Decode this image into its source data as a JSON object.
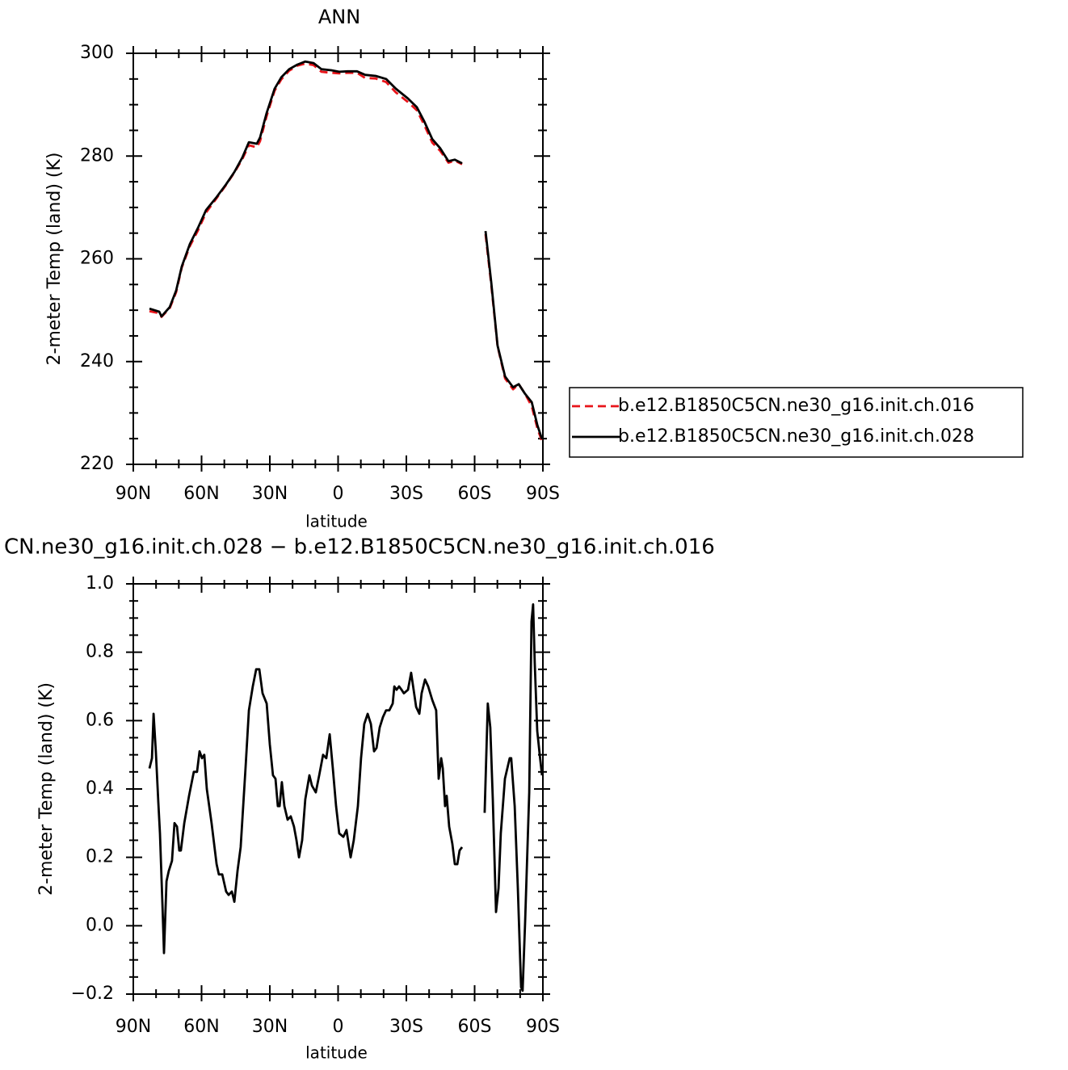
{
  "chart_data": [
    {
      "type": "line",
      "title": "ANN",
      "xlabel": "latitude",
      "ylabel": "2-meter Temp (land) (K)",
      "x": [
        82.9,
        78.6,
        77.6,
        74.0,
        71.2,
        68.7,
        65.1,
        61.6,
        58.0,
        53.4,
        49.2,
        45.6,
        42.1,
        39.2,
        35.7,
        34.3,
        31.4,
        27.9,
        25.0,
        21.5,
        17.9,
        14.4,
        10.8,
        7.3,
        3.0,
        -0.5,
        -4.1,
        -8.3,
        -11.9,
        -16.5,
        -21.1,
        -25.4,
        -30.7,
        -34.6,
        -37.8,
        -41.4,
        -44.9,
        -48.5,
        -51.3,
        -54.5,
        -60,
        -64.8,
        -67.3,
        -70.1,
        -73.4,
        -76.9,
        -79.4,
        -82.2,
        -85.1,
        -87.6,
        -89.6
      ],
      "series": [
        {
          "name": "b.e12.B1850C5CN.ne30_g16.init.ch.016",
          "color": "#e8141a",
          "line_style": "dashed",
          "values": [
            249.8,
            249.4,
            248.7,
            250.4,
            253.5,
            258.3,
            262.5,
            265.5,
            269.0,
            271.8,
            274.4,
            276.8,
            279.4,
            282.1,
            281.7,
            282.9,
            287.8,
            292.7,
            294.9,
            296.6,
            297.6,
            298.0,
            297.7,
            296.4,
            296.2,
            296.1,
            296.2,
            296.2,
            295.2,
            295.1,
            294.4,
            292.4,
            290.5,
            288.9,
            286.1,
            282.6,
            281.0,
            278.7,
            279.1,
            278.4,
            null,
            264.8,
            254.9,
            243.0,
            236.7,
            234.6,
            235.6,
            233.7,
            231.3,
            227.0,
            224.5
          ]
        },
        {
          "name": "b.e12.B1850C5CN.ne30_g16.init.ch.028",
          "color": "#000000",
          "line_style": "solid",
          "values": [
            250.3,
            249.7,
            248.8,
            250.6,
            253.8,
            258.5,
            262.9,
            266.0,
            269.5,
            272.0,
            274.5,
            276.9,
            279.7,
            282.7,
            282.4,
            283.6,
            288.4,
            293.1,
            295.3,
            296.9,
            297.8,
            298.4,
            298.1,
            296.9,
            296.7,
            296.4,
            296.5,
            296.5,
            295.8,
            295.6,
            295.0,
            293.1,
            291.2,
            289.5,
            286.8,
            283.3,
            281.5,
            279.0,
            279.3,
            278.6,
            null,
            265.4,
            255.4,
            243.1,
            237.1,
            235.0,
            235.6,
            233.7,
            232.1,
            227.6,
            224.9
          ]
        }
      ],
      "xlim": [
        90,
        -90
      ],
      "xticks": [
        {
          "value": 90,
          "label": "90N"
        },
        {
          "value": 60,
          "label": "60N"
        },
        {
          "value": 30,
          "label": "30N"
        },
        0,
        {
          "value": -30,
          "label": "30S"
        },
        {
          "value": -60,
          "label": "60S"
        },
        {
          "value": -90,
          "label": "90S"
        }
      ],
      "ylim": [
        220,
        300
      ],
      "yticks": [
        220,
        240,
        260,
        280,
        300
      ],
      "legend": "right"
    },
    {
      "type": "line",
      "title": "CN.ne30_g16.init.ch.028 − b.e12.B1850C5CN.ne30_g16.init.ch.016",
      "xlabel": "latitude",
      "ylabel": "2-meter Temp (land) (K)",
      "x": [
        82.9,
        81.8,
        81.1,
        80.1,
        79.0,
        78.3,
        77.2,
        76.5,
        75.4,
        74.4,
        73.0,
        71.9,
        70.8,
        69.8,
        69.1,
        67.6,
        65.5,
        63.4,
        62.0,
        60.9,
        59.8,
        58.8,
        57.7,
        55.6,
        53.4,
        52.4,
        50.9,
        49.2,
        48.1,
        46.7,
        45.6,
        44.2,
        42.8,
        40.7,
        39.2,
        37.5,
        36.0,
        34.6,
        33.2,
        31.4,
        30.0,
        28.6,
        27.5,
        26.5,
        25.7,
        24.7,
        23.6,
        22.2,
        20.8,
        19.4,
        18.3,
        17.2,
        15.8,
        14.4,
        12.6,
        11.5,
        9.8,
        8.3,
        6.6,
        5.2,
        3.7,
        2.3,
        0.9,
        -0.5,
        -2.3,
        -3.7,
        -5.5,
        -6.9,
        -8.7,
        -10.1,
        -11.5,
        -13.0,
        -14.4,
        -15.8,
        -16.9,
        -18.3,
        -19.7,
        -21.1,
        -22.5,
        -24.0,
        -24.7,
        -25.7,
        -26.8,
        -27.9,
        -28.9,
        -30.7,
        -32.1,
        -33.2,
        -34.3,
        -35.7,
        -36.7,
        -38.2,
        -39.6,
        -41.4,
        -43.1,
        -44.2,
        -45.3,
        -46.0,
        -47.0,
        -47.7,
        -48.8,
        -50.2,
        -51.3,
        -52.4,
        -53.4,
        -54.5,
        -60,
        -64.4,
        -65.8,
        -66.9,
        -68.0,
        -69.4,
        -70.5,
        -71.5,
        -73.3,
        -75.4,
        -76.1,
        -77.6,
        -79.0,
        -80.4,
        -81.1,
        -82.2,
        -84.0,
        -85.0,
        -85.7,
        -86.4,
        -87.5,
        -88.6,
        -89.6
      ],
      "values": [
        0.46,
        0.49,
        0.62,
        0.51,
        0.36,
        0.27,
        0.06,
        -0.08,
        0.13,
        0.16,
        0.19,
        0.3,
        0.29,
        0.22,
        0.22,
        0.3,
        0.38,
        0.45,
        0.45,
        0.51,
        0.49,
        0.5,
        0.4,
        0.3,
        0.18,
        0.15,
        0.15,
        0.1,
        0.09,
        0.1,
        0.07,
        0.16,
        0.23,
        0.46,
        0.63,
        0.7,
        0.75,
        0.75,
        0.68,
        0.65,
        0.53,
        0.44,
        0.43,
        0.35,
        0.35,
        0.42,
        0.35,
        0.31,
        0.32,
        0.29,
        0.25,
        0.2,
        0.25,
        0.37,
        0.44,
        0.41,
        0.39,
        0.44,
        0.5,
        0.49,
        0.56,
        0.46,
        0.35,
        0.27,
        0.26,
        0.28,
        0.2,
        0.25,
        0.35,
        0.49,
        0.59,
        0.62,
        0.59,
        0.51,
        0.52,
        0.58,
        0.61,
        0.63,
        0.63,
        0.65,
        0.7,
        0.69,
        0.7,
        0.69,
        0.68,
        0.69,
        0.74,
        0.69,
        0.64,
        0.62,
        0.68,
        0.72,
        0.7,
        0.66,
        0.63,
        0.43,
        0.49,
        0.46,
        0.35,
        0.38,
        0.29,
        0.24,
        0.18,
        0.18,
        0.22,
        0.23,
        null,
        0.33,
        0.65,
        0.58,
        0.37,
        0.04,
        0.11,
        0.27,
        0.43,
        0.49,
        0.49,
        0.35,
        0.11,
        -0.18,
        -0.19,
        0.01,
        0.39,
        0.89,
        0.94,
        0.77,
        0.57,
        0.5,
        0.44
      ],
      "color": "#000000",
      "line_style": "solid",
      "xlim": [
        90,
        -90
      ],
      "xticks": [
        {
          "value": 90,
          "label": "90N"
        },
        {
          "value": 60,
          "label": "60N"
        },
        {
          "value": 30,
          "label": "30N"
        },
        0,
        {
          "value": -30,
          "label": "30S"
        },
        {
          "value": -60,
          "label": "60S"
        },
        {
          "value": -90,
          "label": "90S"
        }
      ],
      "ylim": [
        -0.2,
        1.0
      ],
      "yticks": [
        {
          "value": -0.2,
          "label": "−0.2"
        },
        {
          "value": 0,
          "label": "0.0"
        },
        0.2,
        0.4,
        0.6,
        0.8,
        {
          "value": 1.0,
          "label": "1.0"
        }
      ]
    }
  ]
}
